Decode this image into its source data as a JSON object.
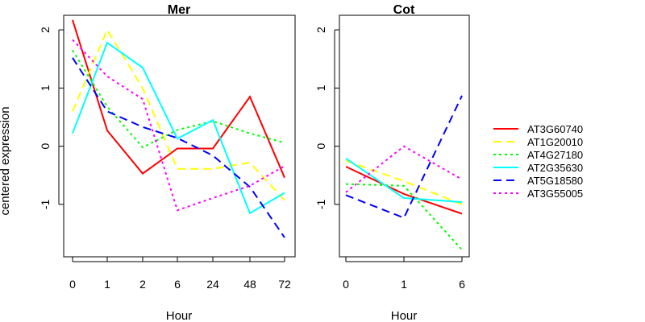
{
  "colors": {
    "AT3G60740": "#ff0000",
    "AT1G20010": "#ffff00",
    "AT4G27180": "#00ff00",
    "AT2G35630": "#00ffff",
    "AT5G18580": "#0000ff",
    "AT3G55005": "#ff00ff"
  },
  "chart_data": [
    {
      "type": "line",
      "title": "Mer",
      "xlabel": "Hour",
      "ylabel": "centered expression",
      "categories": [
        "0",
        "1",
        "2",
        "6",
        "24",
        "48",
        "72"
      ],
      "ylim": [
        -1.9,
        2.25
      ],
      "yticks": [
        -1,
        0,
        1,
        2
      ],
      "series": [
        {
          "name": "AT3G60740",
          "line": "solid",
          "values": [
            2.17,
            0.27,
            -0.47,
            -0.04,
            -0.04,
            0.85,
            -0.54
          ]
        },
        {
          "name": "AT1G20010",
          "line": "dashed",
          "values": [
            0.6,
            2.0,
            1.0,
            -0.39,
            -0.39,
            -0.28,
            -0.93
          ]
        },
        {
          "name": "AT4G27180",
          "line": "dotted",
          "values": [
            1.65,
            0.68,
            -0.02,
            0.28,
            0.43,
            0.22,
            0.06
          ]
        },
        {
          "name": "AT2G35630",
          "line": "solid",
          "values": [
            0.22,
            1.78,
            1.35,
            0.13,
            0.45,
            -1.15,
            -0.8
          ]
        },
        {
          "name": "AT5G18580",
          "line": "dashed",
          "values": [
            1.52,
            0.6,
            0.33,
            0.14,
            -0.16,
            -0.7,
            -1.57
          ]
        },
        {
          "name": "AT3G55005",
          "line": "dotted",
          "values": [
            1.83,
            1.2,
            0.81,
            -1.1,
            -0.89,
            -0.68,
            -0.34
          ]
        }
      ]
    },
    {
      "type": "line",
      "title": "Cot",
      "xlabel": "Hour",
      "categories": [
        "0",
        "1",
        "6"
      ],
      "ylim": [
        -1.9,
        2.25
      ],
      "yticks": [
        -1,
        0,
        1,
        2
      ],
      "series": [
        {
          "name": "AT3G60740",
          "line": "solid",
          "values": [
            -0.35,
            -0.82,
            -1.16
          ]
        },
        {
          "name": "AT1G20010",
          "line": "dashed",
          "values": [
            -0.25,
            -0.6,
            -1.0
          ]
        },
        {
          "name": "AT4G27180",
          "line": "dotted",
          "values": [
            -0.65,
            -0.68,
            -1.78
          ]
        },
        {
          "name": "AT2G35630",
          "line": "solid",
          "values": [
            -0.21,
            -0.89,
            -0.96
          ]
        },
        {
          "name": "AT5G18580",
          "line": "dashed",
          "values": [
            -0.84,
            -1.23,
            0.87
          ]
        },
        {
          "name": "AT3G55005",
          "line": "dotted",
          "values": [
            -0.79,
            0.0,
            -0.57
          ]
        }
      ]
    }
  ],
  "legend": {
    "position": "right",
    "items": [
      "AT3G60740",
      "AT1G20010",
      "AT4G27180",
      "AT2G35630",
      "AT5G18580",
      "AT3G55005"
    ]
  }
}
